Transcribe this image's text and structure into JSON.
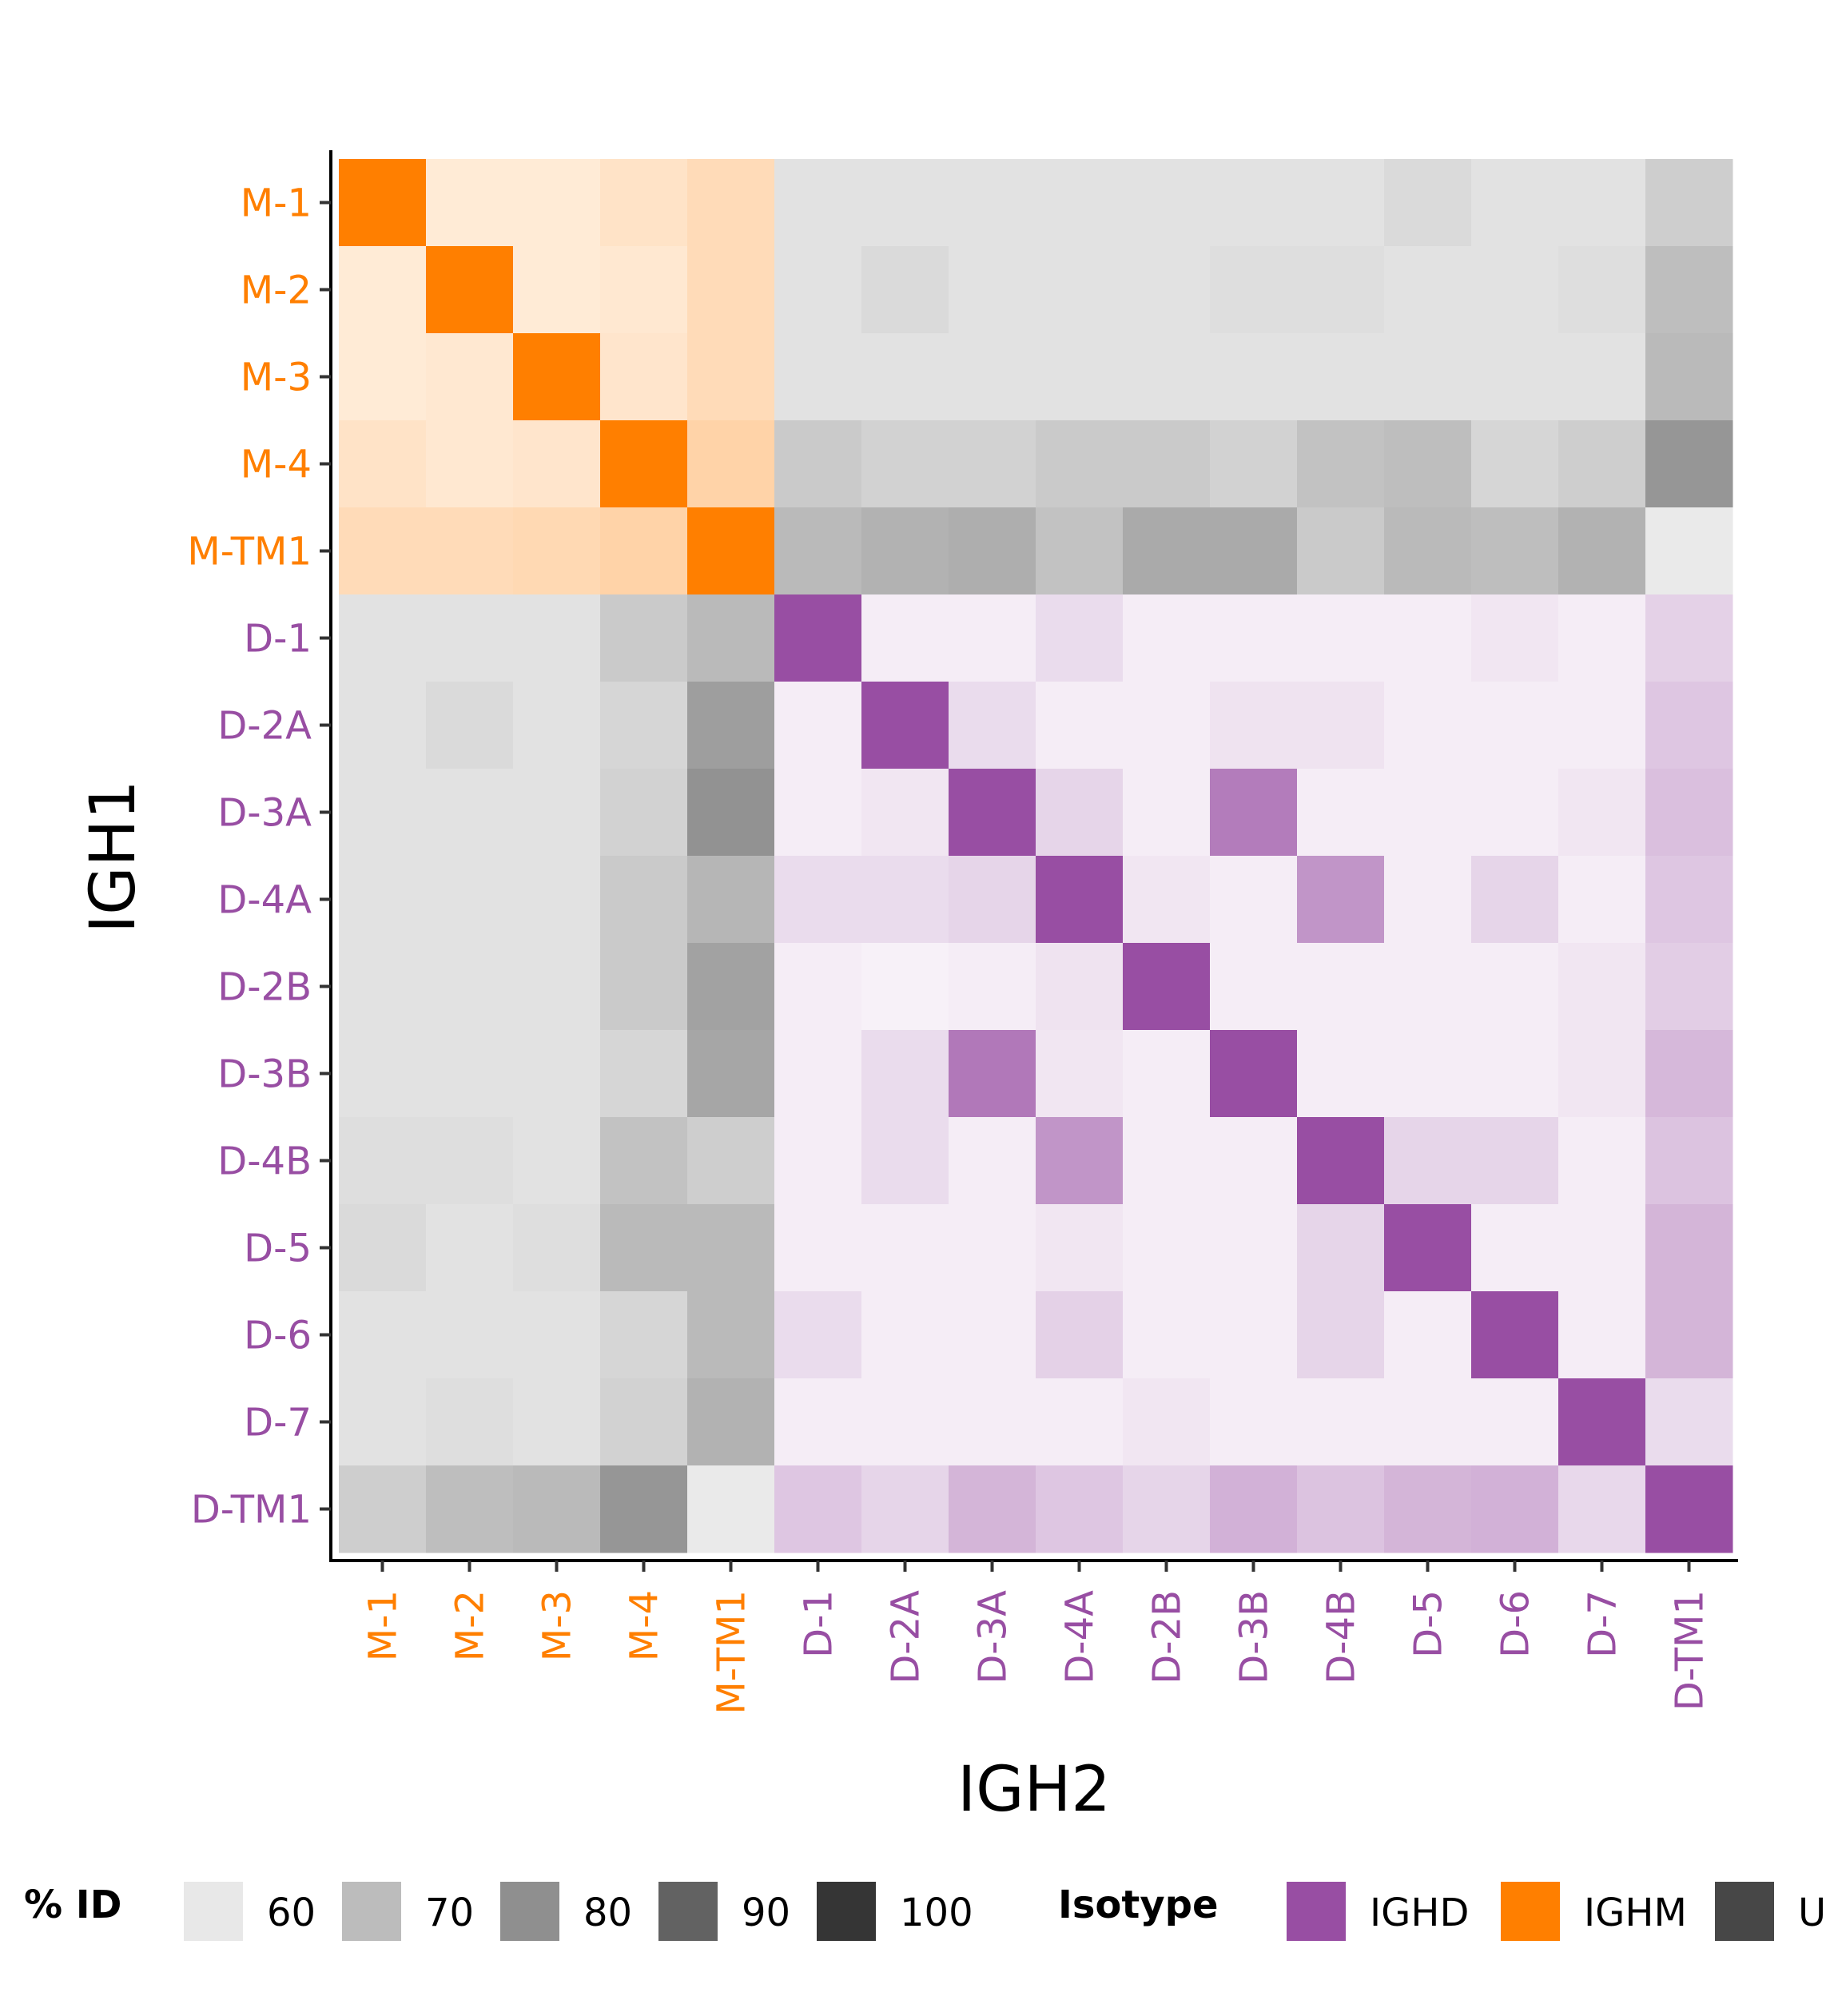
{
  "chart_data": {
    "type": "heatmap",
    "title": "",
    "xlabel": "IGH2",
    "ylabel": "IGH1",
    "categories": [
      "M-1",
      "M-2",
      "M-3",
      "M-4",
      "M-TM1",
      "D-1",
      "D-2A",
      "D-3A",
      "D-4A",
      "D-2B",
      "D-3B",
      "D-4B",
      "D-5",
      "D-6",
      "D-7",
      "D-TM1"
    ],
    "category_isotype": [
      "IGHM",
      "IGHM",
      "IGHM",
      "IGHM",
      "IGHM",
      "IGHD",
      "IGHD",
      "IGHD",
      "IGHD",
      "IGHD",
      "IGHD",
      "IGHD",
      "IGHD",
      "IGHD",
      "IGHD",
      "IGHD"
    ],
    "values": [
      [
        100,
        58,
        58,
        61,
        64,
        57,
        57,
        57,
        57,
        57,
        57,
        57,
        59,
        57,
        57,
        62
      ],
      [
        58,
        100,
        58,
        59,
        64,
        57,
        59,
        57,
        57,
        57,
        58,
        58,
        57,
        57,
        58,
        66
      ],
      [
        58,
        59,
        100,
        60,
        64,
        57,
        57,
        57,
        57,
        57,
        57,
        57,
        57,
        57,
        57,
        67
      ],
      [
        61,
        59,
        60,
        100,
        67,
        63,
        61,
        61,
        63,
        63,
        61,
        65,
        66,
        60,
        62,
        76
      ],
      [
        64,
        64,
        65,
        67,
        100,
        67,
        69,
        70,
        65,
        71,
        71,
        63,
        67,
        66,
        69,
        55
      ],
      [
        57,
        57,
        57,
        63,
        67,
        90,
        55,
        55,
        60,
        55,
        55,
        55,
        55,
        57,
        55,
        63
      ],
      [
        57,
        59,
        57,
        60,
        74,
        55,
        90,
        60,
        55,
        55,
        58,
        58,
        55,
        55,
        55,
        66
      ],
      [
        57,
        57,
        57,
        61,
        77,
        55,
        57,
        90,
        62,
        55,
        87,
        55,
        55,
        55,
        57,
        68
      ],
      [
        57,
        57,
        57,
        63,
        68,
        60,
        60,
        62,
        92,
        57,
        55,
        80,
        55,
        62,
        55,
        66
      ],
      [
        57,
        57,
        57,
        63,
        73,
        55,
        54,
        55,
        58,
        92,
        55,
        55,
        55,
        55,
        57,
        64
      ],
      [
        57,
        57,
        57,
        60,
        72,
        55,
        60,
        88,
        57,
        55,
        90,
        55,
        55,
        55,
        57,
        70
      ],
      [
        58,
        58,
        57,
        65,
        62,
        55,
        60,
        55,
        80,
        55,
        55,
        92,
        62,
        62,
        55,
        67
      ],
      [
        59,
        57,
        58,
        67,
        67,
        55,
        55,
        55,
        57,
        55,
        55,
        62,
        92,
        55,
        55,
        71
      ],
      [
        57,
        57,
        57,
        60,
        67,
        60,
        55,
        55,
        63,
        55,
        55,
        62,
        55,
        92,
        55,
        71
      ],
      [
        57,
        58,
        57,
        61,
        69,
        55,
        55,
        55,
        55,
        57,
        55,
        55,
        55,
        55,
        90,
        60
      ],
      [
        62,
        66,
        67,
        76,
        55,
        66,
        62,
        71,
        66,
        62,
        72,
        67,
        71,
        72,
        61,
        90
      ]
    ],
    "legend_identity": {
      "title": "% ID",
      "levels": [
        "60",
        "70",
        "80",
        "90",
        "100"
      ],
      "colors": [
        "#e8e8e8",
        "#bcbcbc",
        "#8f8f8f",
        "#626262",
        "#353535"
      ]
    },
    "legend_isotype": {
      "title": "Isotype",
      "items": [
        "IGHD",
        "IGHM",
        "U"
      ],
      "colors": [
        "#984ea3",
        "#ff7f00",
        "#474747"
      ]
    },
    "colors": {
      "IGHM": "#ff7f00",
      "IGHD": "#984ea3",
      "U": "#474747"
    },
    "legend_placement": "bottom",
    "grid": false
  }
}
